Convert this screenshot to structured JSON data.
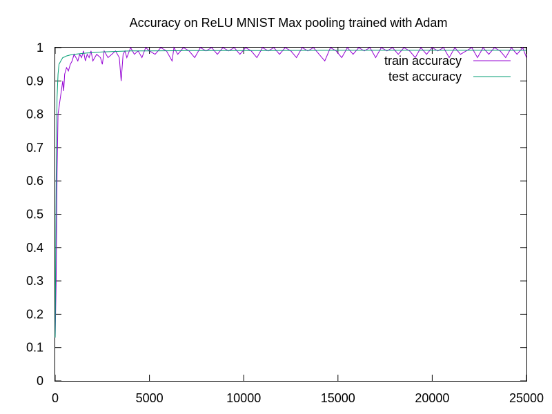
{
  "chart_data": {
    "type": "line",
    "title": "Accuracy on ReLU MNIST Max pooling trained with Adam",
    "xlabel": "",
    "ylabel": "",
    "xlim": [
      0,
      25000
    ],
    "ylim": [
      0,
      1
    ],
    "xticks": [
      0,
      5000,
      10000,
      15000,
      20000,
      25000
    ],
    "xtick_labels": [
      "0",
      "5000",
      "10000",
      "15000",
      "20000",
      "25000"
    ],
    "yticks": [
      0,
      0.1,
      0.2,
      0.3,
      0.4,
      0.5,
      0.6,
      0.7,
      0.8,
      0.9,
      1
    ],
    "ytick_labels": [
      "0",
      "0.1",
      "0.2",
      "0.3",
      "0.4",
      "0.5",
      "0.6",
      "0.7",
      "0.8",
      "0.9",
      "1"
    ],
    "grid": false,
    "legend_position": "top-right",
    "series": [
      {
        "name": "train accuracy",
        "color": "#9400d3",
        "x": [
          0,
          50,
          100,
          150,
          200,
          250,
          300,
          350,
          400,
          450,
          500,
          600,
          700,
          800,
          900,
          1000,
          1100,
          1200,
          1300,
          1400,
          1500,
          1600,
          1700,
          1800,
          1900,
          2000,
          2200,
          2400,
          2500,
          2600,
          2800,
          3000,
          3200,
          3400,
          3500,
          3600,
          3700,
          3800,
          4000,
          4200,
          4400,
          4600,
          4800,
          5000,
          5300,
          5600,
          5900,
          6200,
          6300,
          6500,
          6800,
          7100,
          7400,
          7700,
          8000,
          8300,
          8600,
          8900,
          9200,
          9500,
          9800,
          10100,
          10400,
          10700,
          11000,
          11300,
          11600,
          11900,
          12200,
          12500,
          12800,
          13100,
          13400,
          13700,
          14000,
          14300,
          14600,
          14900,
          15200,
          15500,
          15800,
          16100,
          16400,
          16700,
          17000,
          17300,
          17600,
          17900,
          18200,
          18500,
          18800,
          19100,
          19400,
          19700,
          20000,
          20300,
          20600,
          20900,
          21200,
          21500,
          21800,
          22100,
          22400,
          22700,
          23000,
          23300,
          23600,
          23900,
          24200,
          24500,
          24800,
          25000
        ],
        "y": [
          0.13,
          0.3,
          0.62,
          0.8,
          0.82,
          0.84,
          0.86,
          0.88,
          0.9,
          0.87,
          0.92,
          0.94,
          0.93,
          0.95,
          0.96,
          0.98,
          0.97,
          0.96,
          0.98,
          0.97,
          0.99,
          0.96,
          0.98,
          0.97,
          0.99,
          0.96,
          0.98,
          0.97,
          0.95,
          0.99,
          0.97,
          0.98,
          0.99,
          0.97,
          0.9,
          0.98,
          0.99,
          0.97,
          1.0,
          0.98,
          0.99,
          0.97,
          1.0,
          0.99,
          0.98,
          1.0,
          0.99,
          0.96,
          1.0,
          0.98,
          1.0,
          0.99,
          0.97,
          1.0,
          0.99,
          1.0,
          0.98,
          1.0,
          0.99,
          1.0,
          0.98,
          1.0,
          0.99,
          0.97,
          1.0,
          0.99,
          1.0,
          0.98,
          1.0,
          0.99,
          0.97,
          1.0,
          0.99,
          1.0,
          0.98,
          0.96,
          1.0,
          0.99,
          0.97,
          1.0,
          0.98,
          1.0,
          0.99,
          1.0,
          0.97,
          1.0,
          0.99,
          1.0,
          0.98,
          1.0,
          0.99,
          0.97,
          1.0,
          0.98,
          1.0,
          0.99,
          1.0,
          0.97,
          1.0,
          0.98,
          0.99,
          1.0,
          0.97,
          1.0,
          0.98,
          1.0,
          0.99,
          0.97,
          1.0,
          0.98,
          1.0,
          0.97
        ]
      },
      {
        "name": "test accuracy",
        "color": "#009e73",
        "x": [
          0,
          50,
          100,
          150,
          200,
          300,
          400,
          500,
          600,
          800,
          1000,
          1500,
          2000,
          2500,
          3000,
          3500,
          4000,
          5000,
          7000,
          10000,
          15000,
          20000,
          25000
        ],
        "y": [
          0.13,
          0.6,
          0.85,
          0.92,
          0.95,
          0.96,
          0.97,
          0.972,
          0.975,
          0.978,
          0.98,
          0.983,
          0.985,
          0.987,
          0.988,
          0.989,
          0.99,
          0.99,
          0.991,
          0.991,
          0.992,
          0.992,
          0.992
        ]
      }
    ]
  }
}
